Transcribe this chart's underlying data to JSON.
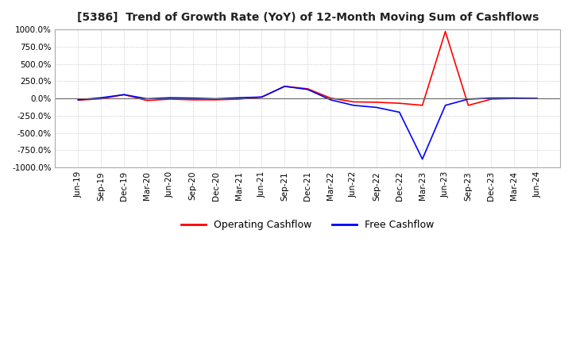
{
  "title": "[5386]  Trend of Growth Rate (YoY) of 12-Month Moving Sum of Cashflows",
  "ylim": [
    -1000,
    1000
  ],
  "yticks": [
    1000.0,
    750.0,
    500.0,
    250.0,
    0.0,
    -250.0,
    -500.0,
    -750.0,
    -1000.0
  ],
  "background_color": "#ffffff",
  "grid_color": "#bbbbbb",
  "legend": [
    "Operating Cashflow",
    "Free Cashflow"
  ],
  "legend_colors": [
    "#ff0000",
    "#0000ff"
  ],
  "x_labels": [
    "Jun-19",
    "Sep-19",
    "Dec-19",
    "Mar-20",
    "Jun-20",
    "Sep-20",
    "Dec-20",
    "Mar-21",
    "Jun-21",
    "Sep-21",
    "Dec-21",
    "Mar-22",
    "Jun-22",
    "Sep-22",
    "Dec-22",
    "Mar-23",
    "Jun-23",
    "Sep-23",
    "Dec-23",
    "Mar-24",
    "Jun-24"
  ],
  "operating_cashflow": [
    -25,
    -5,
    55,
    -30,
    -10,
    -20,
    -20,
    -10,
    20,
    175,
    140,
    5,
    -50,
    -55,
    -70,
    -100,
    970,
    -100,
    -10,
    0,
    0
  ],
  "free_cashflow": [
    -20,
    10,
    55,
    -5,
    10,
    5,
    -5,
    10,
    20,
    175,
    130,
    -20,
    -100,
    -130,
    -200,
    -880,
    -100,
    -10,
    5,
    5,
    0
  ]
}
